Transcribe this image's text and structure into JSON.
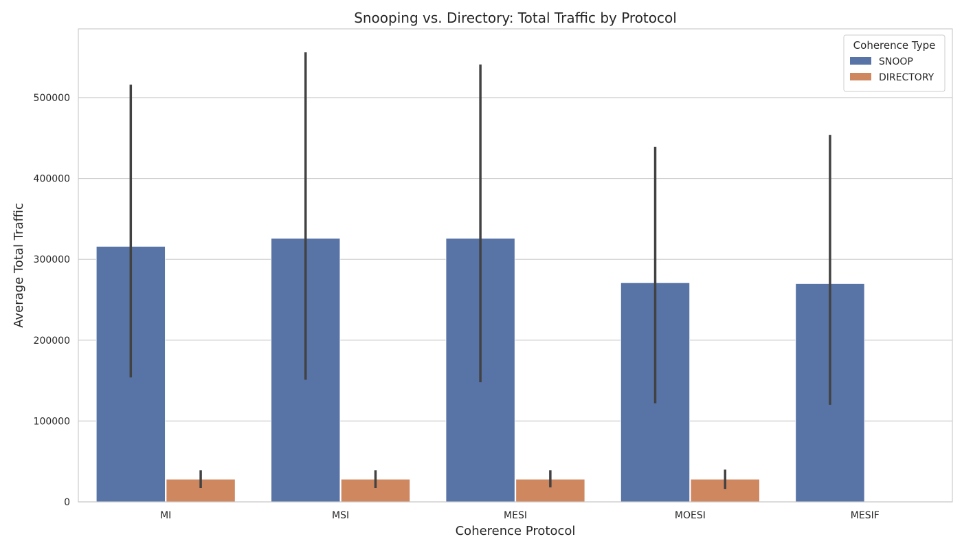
{
  "chart_data": {
    "type": "bar",
    "title": "Snooping vs. Directory: Total Traffic by Protocol",
    "xlabel": "Coherence Protocol",
    "ylabel": "Average Total Traffic",
    "categories": [
      "MI",
      "MSI",
      "MESI",
      "MOESI",
      "MESIF"
    ],
    "yticks": [
      0,
      100000,
      200000,
      300000,
      400000,
      500000
    ],
    "ylim": [
      0,
      585000
    ],
    "grid": true,
    "legend": {
      "title": "Coherence Type",
      "placement": "top-right"
    },
    "series": [
      {
        "name": "SNOOP",
        "color": "#5873a6",
        "values": [
          316000,
          326000,
          326000,
          271000,
          270000
        ],
        "error_low": [
          154000,
          151000,
          148000,
          122000,
          120000
        ],
        "error_high": [
          516000,
          556000,
          541000,
          439000,
          454000
        ]
      },
      {
        "name": "DIRECTORY",
        "color": "#cf8760",
        "values": [
          28000,
          28000,
          28000,
          28000,
          null
        ],
        "error_low": [
          17000,
          17000,
          18000,
          16000,
          null
        ],
        "error_high": [
          39000,
          39000,
          39000,
          40000,
          null
        ]
      }
    ]
  }
}
